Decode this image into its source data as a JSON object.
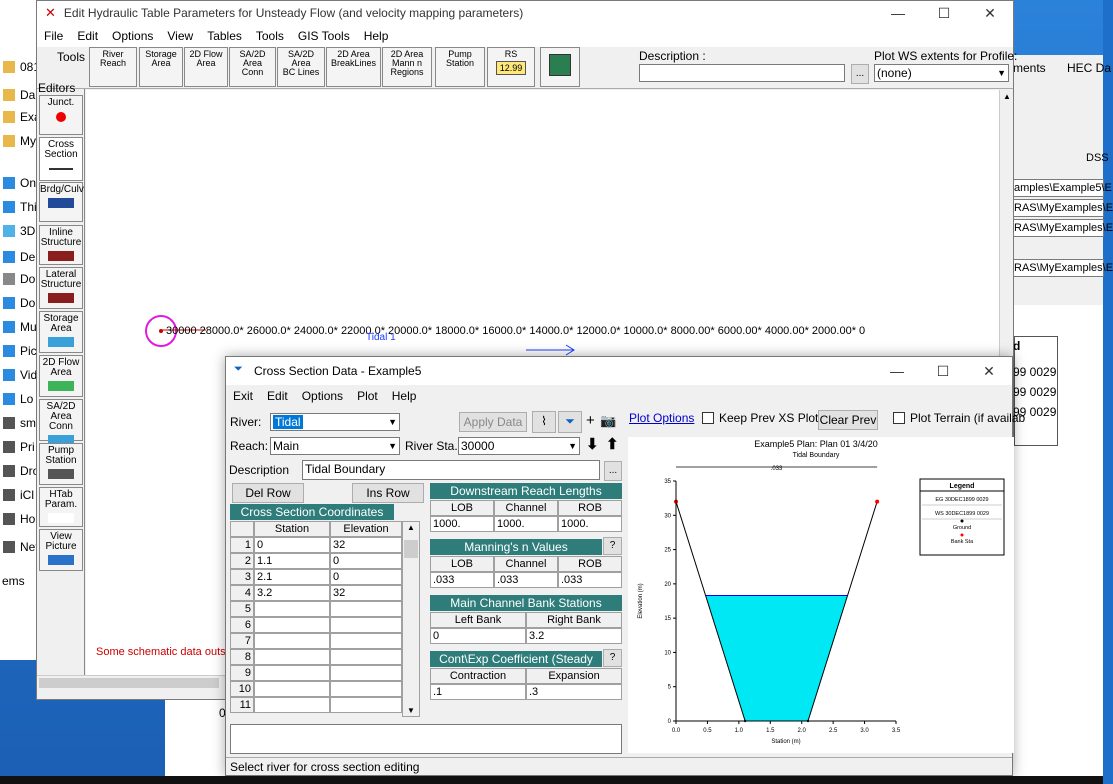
{
  "explorer": {
    "items": [
      "081",
      "Da",
      "Exa",
      "My",
      "One",
      "This",
      "3D",
      "De",
      "Do",
      "Do",
      "Mu",
      "Pic",
      "Vid",
      "Lo",
      "sm",
      "Pri",
      "Dro",
      "iCl",
      "Ho",
      "Netw",
      "ems"
    ]
  },
  "hec_back": {
    "crumb1": "ments",
    "crumb2": "HEC Da",
    "dss": "DSS",
    "paths": [
      "amples\\Example5\\E",
      "RAS\\MyExamples\\E",
      "RAS\\MyExamples\\E",
      "RAS\\MyExamples\\E"
    ],
    "legend_d": "d",
    "legend_rows": [
      "99 0029",
      "99 0029",
      "99 0029"
    ],
    "zero": "0"
  },
  "main_win": {
    "title": "Edit Hydraulic Table Parameters for Unsteady Flow (and velocity mapping parameters)",
    "menu": [
      "File",
      "Edit",
      "Options",
      "View",
      "Tables",
      "Tools",
      "GIS Tools",
      "Help"
    ],
    "tools_label": "Tools",
    "editors_label": "Editors",
    "toolbar": [
      {
        "label": "River\nReach"
      },
      {
        "label": "Storage\nArea"
      },
      {
        "label": "2D Flow\nArea"
      },
      {
        "label": "SA/2D Area\nConn"
      },
      {
        "label": "SA/2D Area\nBC Lines"
      },
      {
        "label": "2D Area\nBreakLines"
      },
      {
        "label": "2D Area\nMann n\nRegions"
      },
      {
        "label": "Pump\nStation"
      },
      {
        "label": "RS"
      },
      {
        "label": ""
      }
    ],
    "rs_value": "12.99",
    "description_label": "Description :",
    "plot_ws_label": "Plot WS extents for Profile:",
    "plot_ws_value": "(none)",
    "side": [
      "Junct.",
      "Cross\nSection",
      "Brdg/Culv",
      "Inline\nStructure",
      "Lateral\nStructure",
      "Storage\nArea",
      "2D Flow\nArea",
      "SA/2D Area\nConn",
      "Pump\nStation",
      "HTab\nParam.",
      "View\nPicture"
    ],
    "stations": "30000   28000.0* 26000.0* 24000.0* 22000.0* 20000.0* 18000.0* 16000.0* 14000.0* 12000.0* 10000.0* 8000.00* 6000.00* 4000.00* 2000.00* 0",
    "river_label": "Tidal 1",
    "warning": "Some schematic data outsi"
  },
  "xs": {
    "title": "Cross Section Data - Example5",
    "menu": [
      "Exit",
      "Edit",
      "Options",
      "Plot",
      "Help"
    ],
    "river_label": "River:",
    "river_value": "Tidal",
    "apply_data": "Apply Data",
    "plot_options": "Plot Options",
    "keep_prev": "Keep Prev XS Plots",
    "clear_prev": "Clear Prev",
    "plot_terrain": "Plot Terrain (if availab",
    "reach_label": "Reach:",
    "reach_value": "Main",
    "river_sta_label": "River Sta.:",
    "river_sta_value": "30000",
    "description_label": "Description",
    "description_value": "Tidal Boundary",
    "del_row": "Del Row",
    "ins_row": "Ins Row",
    "coords_title": "Cross Section Coordinates",
    "coords_headers": [
      "Station",
      "Elevation"
    ],
    "coords_rows": [
      {
        "n": "1",
        "station": "0",
        "elev": "32"
      },
      {
        "n": "2",
        "station": "1.1",
        "elev": "0"
      },
      {
        "n": "3",
        "station": "2.1",
        "elev": "0"
      },
      {
        "n": "4",
        "station": "3.2",
        "elev": "32"
      },
      {
        "n": "5",
        "station": "",
        "elev": ""
      },
      {
        "n": "6",
        "station": "",
        "elev": ""
      },
      {
        "n": "7",
        "station": "",
        "elev": ""
      },
      {
        "n": "8",
        "station": "",
        "elev": ""
      },
      {
        "n": "9",
        "station": "",
        "elev": ""
      },
      {
        "n": "10",
        "station": "",
        "elev": ""
      },
      {
        "n": "11",
        "station": "",
        "elev": ""
      }
    ],
    "reach_lengths_title": "Downstream Reach Lengths",
    "lob_label": "LOB",
    "channel_label": "Channel",
    "rob_label": "ROB",
    "lob_len": "1000.",
    "channel_len": "1000.",
    "rob_len": "1000.",
    "mannings_title": "Manning's n Values",
    "lob_n": ".033",
    "channel_n": ".033",
    "rob_n": ".033",
    "bank_title": "Main Channel Bank Stations",
    "left_bank_label": "Left Bank",
    "right_bank_label": "Right Bank",
    "left_bank": "0",
    "right_bank": "3.2",
    "cont_title": "Cont\\Exp Coefficient (Steady",
    "contraction_label": "Contraction",
    "expansion_label": "Expansion",
    "contraction": ".1",
    "expansion": ".3",
    "status": "Select river for cross section editing"
  },
  "chart_data": {
    "type": "area",
    "title": "Example5      Plan: Plan 01      3/4/20",
    "subtitle": "Tidal Boundary",
    "xlabel": "Station (m)",
    "ylabel": "Elevation (m)",
    "xlim": [
      0,
      3.5
    ],
    "ylim": [
      0,
      35
    ],
    "xticks": [
      "0.0",
      "0.5",
      "1.0",
      "1.5",
      "2.0",
      "2.5",
      "3.0",
      "3.5"
    ],
    "yticks": [
      "0",
      "5",
      "10",
      "15",
      "20",
      "25",
      "30",
      "35"
    ],
    "n_annotation": ".033",
    "ground": {
      "x": [
        0,
        1.1,
        2.1,
        3.2
      ],
      "y": [
        32,
        0,
        0,
        32
      ]
    },
    "water_surface": 18.3,
    "bank_stations": [
      {
        "x": 0,
        "y": 32
      },
      {
        "x": 3.2,
        "y": 32
      }
    ],
    "legend_title": "Legend",
    "legend": [
      {
        "name": "EG 30DEC1899 0029",
        "color": "#000000"
      },
      {
        "name": "WS 30DEC1899 0029",
        "color": "#0000ff"
      },
      {
        "name": "Ground",
        "color": "#000000"
      },
      {
        "name": "Bank Sta",
        "color": "#ff0000"
      }
    ],
    "water_color": "#00e8f4"
  }
}
